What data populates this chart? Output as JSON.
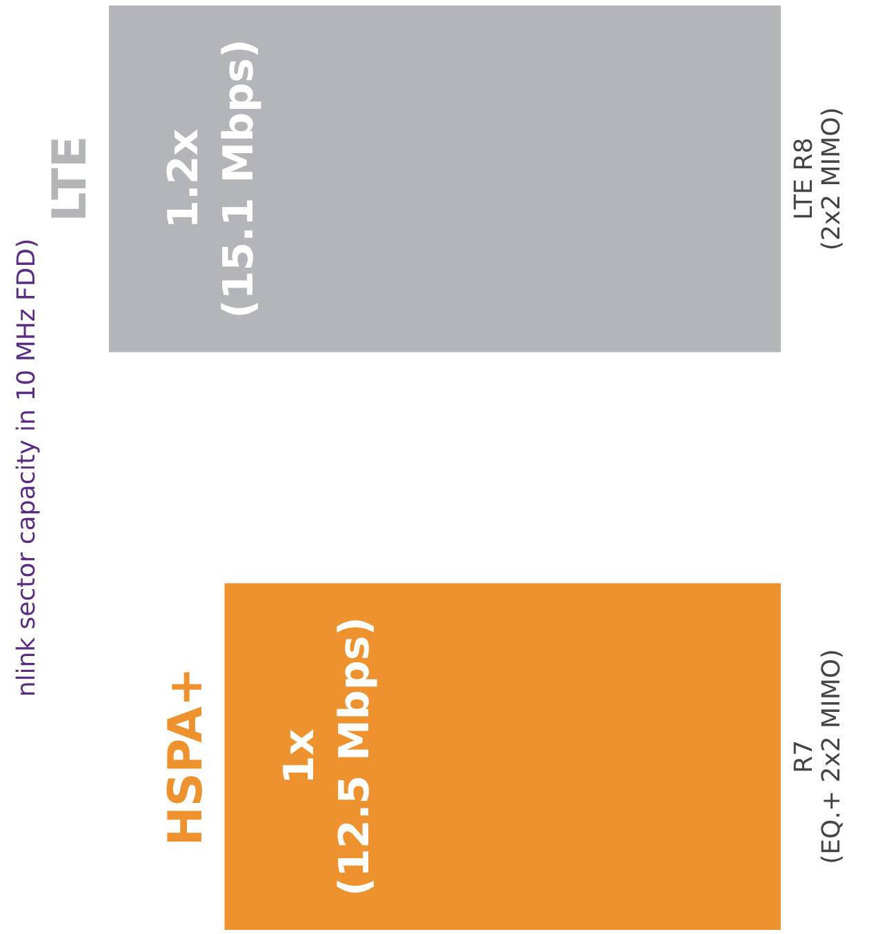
{
  "chart_data": {
    "type": "bar",
    "orientation": "horizontal",
    "title": "nlink sector capacity in 10 MHz FDD)",
    "categories": [
      "LTE R8\n(2x2 MIMO)",
      "R7\n(EQ.+ 2x2 MIMO)"
    ],
    "series": [
      {
        "name": "LTE",
        "color": "#b4b5b8",
        "values": [
          15.1,
          null
        ],
        "value_labels": [
          "1.2x\n(15.1 Mbps)",
          null
        ]
      },
      {
        "name": "HSPA+",
        "color": "#ee9230",
        "values": [
          null,
          12.5
        ],
        "value_labels": [
          null,
          "1x\n(12.5 Mbps)"
        ]
      }
    ],
    "legend": false,
    "grid": false
  }
}
